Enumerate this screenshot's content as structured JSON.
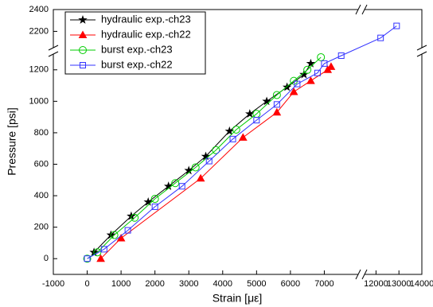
{
  "chart_data": {
    "type": "line",
    "x_label": "Strain [με]",
    "y_label": "Pressure [psi]",
    "xlim": [
      -1000,
      14000
    ],
    "x_break": [
      8000,
      11500
    ],
    "ylim": [
      -100,
      2400
    ],
    "y_break": [
      1300,
      2050
    ],
    "xticks": [
      -1000,
      0,
      1000,
      2000,
      3000,
      4000,
      5000,
      6000,
      7000,
      12000,
      13000,
      14000
    ],
    "yticks": [
      0,
      200,
      400,
      600,
      800,
      1000,
      1200,
      2200,
      2400
    ],
    "legend": "upper left",
    "series": [
      {
        "name": "hydraulic exp.-ch23",
        "color": "#000000",
        "marker": "star",
        "x": [
          200,
          700,
          1300,
          1800,
          2400,
          3000,
          3500,
          4200,
          4800,
          5300,
          5900,
          6400,
          6600
        ],
        "values": [
          40,
          150,
          270,
          360,
          460,
          560,
          650,
          810,
          920,
          1000,
          1090,
          1170,
          1240
        ]
      },
      {
        "name": "hydraulic exp.-ch22",
        "color": "#ff0000",
        "marker": "triangle",
        "x": [
          400,
          1000,
          3350,
          4600,
          5600,
          6100,
          6600,
          7100,
          7200
        ],
        "values": [
          0,
          130,
          510,
          770,
          930,
          1060,
          1130,
          1200,
          1220
        ]
      },
      {
        "name": "burst exp.-ch23",
        "color": "#00cc00",
        "marker": "circle",
        "x": [
          0,
          300,
          800,
          1400,
          2000,
          2600,
          3200,
          3800,
          4400,
          5000,
          5600,
          6100,
          6500,
          6900
        ],
        "values": [
          0,
          40,
          150,
          260,
          380,
          480,
          580,
          690,
          820,
          920,
          1040,
          1130,
          1200,
          1280
        ]
      },
      {
        "name": "burst exp.-ch22",
        "color": "#3333ff",
        "marker": "square",
        "x": [
          0,
          500,
          1200,
          2000,
          2800,
          3600,
          4300,
          5000,
          5600,
          6200,
          6800,
          7000,
          7500,
          12200,
          12900
        ],
        "values": [
          0,
          60,
          180,
          330,
          460,
          620,
          760,
          880,
          980,
          1110,
          1180,
          1240,
          1290,
          2140,
          2250
        ]
      }
    ]
  }
}
